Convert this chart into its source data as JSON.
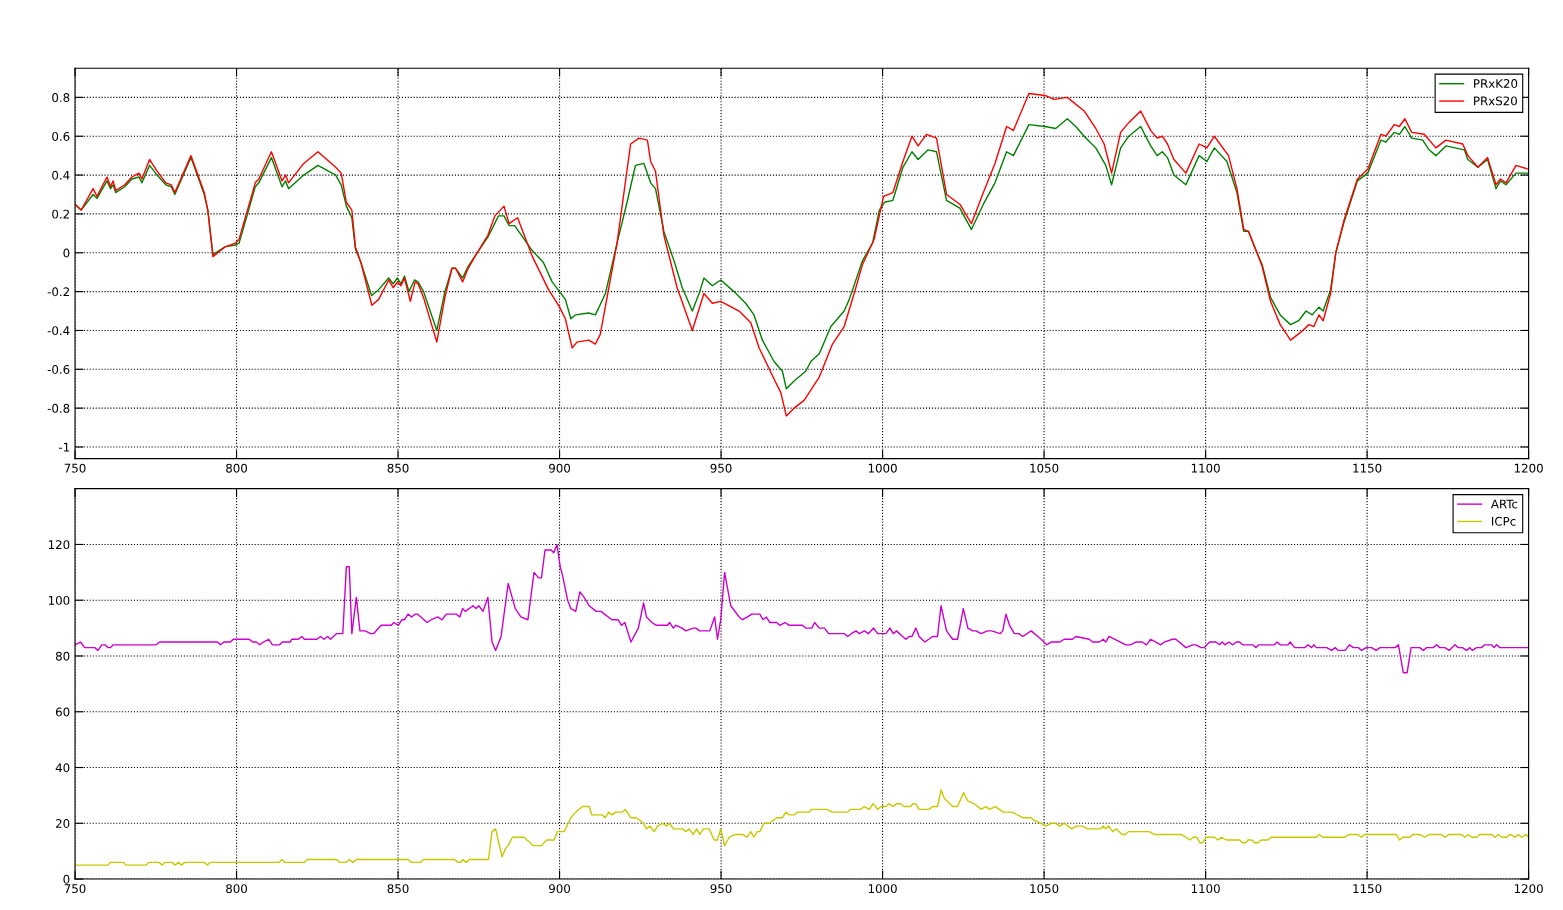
{
  "chart_data": [
    {
      "type": "line",
      "xlim": [
        750,
        1200
      ],
      "xticks": [
        750,
        800,
        850,
        900,
        950,
        1000,
        1050,
        1100,
        1150,
        1200
      ],
      "ylim": [
        -1.06,
        0.95
      ],
      "yticks": [
        -1,
        -0.8,
        -0.6,
        -0.4,
        -0.2,
        0,
        0.2,
        0.4,
        0.6,
        0.8
      ],
      "grid": true,
      "legend": "top right",
      "line_style": "solid",
      "marker": "none",
      "series": [
        {
          "name": "PRxK20",
          "color": "#008000",
          "x": [
            750,
            751.9,
            755.6,
            756.8,
            759.9,
            761,
            761.8,
            762.6,
            765.4,
            767.6,
            769.8,
            770.7,
            773.1,
            775.4,
            778.1,
            779.8,
            780.9,
            785.9,
            790,
            791.1,
            792.7,
            796.4,
            799.7,
            800.8,
            805.8,
            806.9,
            810.8,
            814.1,
            815.2,
            816.1,
            820.8,
            825.2,
            830.7,
            832.4,
            834,
            835.7,
            836.8,
            838.5,
            841.8,
            844,
            847.1,
            848.5,
            849.8,
            850.9,
            852,
            853.4,
            855.1,
            856.2,
            857.9,
            862,
            864.5,
            866.7,
            867.8,
            870,
            871.7,
            874.5,
            877.8,
            881.1,
            882.8,
            884.4,
            886.1,
            891.6,
            895,
            897.7,
            900,
            901.8,
            903.5,
            904.9,
            909,
            911.1,
            914.2,
            917.8,
            920.9,
            923.5,
            926.1,
            928.2,
            929.7,
            932.3,
            935.4,
            938,
            941.1,
            943.2,
            944.7,
            947.3,
            949.9,
            954,
            957.6,
            960.2,
            962.8,
            966.4,
            969,
            970.2,
            972.6,
            976.2,
            977.8,
            980.4,
            984,
            988.1,
            989.7,
            993.8,
            996.9,
            999,
            1000.6,
            1003.2,
            1006.3,
            1009.1,
            1011,
            1014.1,
            1016.7,
            1019.8,
            1023.9,
            1027.5,
            1031.2,
            1034.8,
            1038.4,
            1040.5,
            1045.3,
            1050.3,
            1053.6,
            1057.2,
            1059.8,
            1062.4,
            1066,
            1069.1,
            1070.9,
            1073.7,
            1076.2,
            1079.9,
            1083,
            1085,
            1086.6,
            1088.2,
            1090.2,
            1093.9,
            1098,
            1100.4,
            1102.7,
            1106.6,
            1109.7,
            1111.8,
            1113.3,
            1115.9,
            1117.5,
            1120.1,
            1123.1,
            1126.3,
            1128.8,
            1131.1,
            1133,
            1135.1,
            1136.4,
            1138.7,
            1140.3,
            1142.9,
            1147,
            1150.2,
            1154.3,
            1155.8,
            1158.4,
            1160,
            1161.7,
            1163.8,
            1167.2,
            1169.2,
            1171.3,
            1174.4,
            1180.1,
            1181.2,
            1184.3,
            1187.3,
            1189.9,
            1191.3,
            1193,
            1196.1,
            1200
          ],
          "values": [
            0.25,
            0.22,
            0.3,
            0.28,
            0.37,
            0.33,
            0.35,
            0.31,
            0.34,
            0.38,
            0.39,
            0.36,
            0.45,
            0.4,
            0.35,
            0.34,
            0.3,
            0.49,
            0.3,
            0.22,
            -0.01,
            0.03,
            0.04,
            0.05,
            0.34,
            0.36,
            0.49,
            0.34,
            0.37,
            0.33,
            0.4,
            0.45,
            0.4,
            0.35,
            0.24,
            0.18,
            0.02,
            -0.05,
            -0.22,
            -0.19,
            -0.13,
            -0.16,
            -0.13,
            -0.16,
            -0.12,
            -0.2,
            -0.14,
            -0.15,
            -0.2,
            -0.4,
            -0.2,
            -0.08,
            -0.08,
            -0.13,
            -0.07,
            0.0,
            0.08,
            0.19,
            0.19,
            0.14,
            0.14,
            0.01,
            -0.05,
            -0.15,
            -0.2,
            -0.24,
            -0.34,
            -0.32,
            -0.31,
            -0.32,
            -0.21,
            0.05,
            0.26,
            0.45,
            0.46,
            0.36,
            0.33,
            0.11,
            -0.04,
            -0.18,
            -0.3,
            -0.21,
            -0.13,
            -0.17,
            -0.14,
            -0.2,
            -0.26,
            -0.32,
            -0.45,
            -0.56,
            -0.61,
            -0.7,
            -0.66,
            -0.61,
            -0.56,
            -0.52,
            -0.38,
            -0.3,
            -0.24,
            -0.04,
            0.05,
            0.22,
            0.26,
            0.27,
            0.44,
            0.52,
            0.48,
            0.53,
            0.52,
            0.27,
            0.23,
            0.12,
            0.25,
            0.36,
            0.52,
            0.5,
            0.66,
            0.65,
            0.64,
            0.69,
            0.65,
            0.6,
            0.54,
            0.45,
            0.35,
            0.54,
            0.6,
            0.65,
            0.55,
            0.5,
            0.52,
            0.49,
            0.4,
            0.35,
            0.5,
            0.47,
            0.54,
            0.47,
            0.31,
            0.11,
            0.11,
            0.0,
            -0.06,
            -0.23,
            -0.32,
            -0.37,
            -0.35,
            -0.3,
            -0.32,
            -0.28,
            -0.3,
            -0.19,
            0.0,
            0.16,
            0.37,
            0.41,
            0.58,
            0.57,
            0.62,
            0.61,
            0.65,
            0.59,
            0.58,
            0.53,
            0.5,
            0.55,
            0.53,
            0.48,
            0.44,
            0.48,
            0.33,
            0.37,
            0.35,
            0.41,
            0.41
          ]
        },
        {
          "name": "PRxS20",
          "color": "#ff0000",
          "x": [
            750,
            751.9,
            755.6,
            756.8,
            759.9,
            761,
            761.8,
            762.6,
            765.4,
            767.6,
            769.8,
            770.7,
            773.1,
            775.4,
            778.1,
            779.8,
            780.9,
            785.9,
            790,
            791.1,
            792.7,
            796.4,
            799.7,
            800.8,
            805.8,
            806.9,
            810.8,
            814.1,
            815.2,
            816.1,
            820.8,
            825.2,
            830.7,
            832.4,
            834,
            835.7,
            836.8,
            838.5,
            841.9,
            844,
            847.1,
            848.5,
            849.8,
            850.9,
            852,
            853.8,
            855.3,
            856.2,
            857.9,
            862,
            864.5,
            866.7,
            867.8,
            870,
            871.7,
            874.5,
            877.8,
            880,
            882.8,
            884.4,
            887,
            891.6,
            896.6,
            900,
            901.8,
            903.9,
            905.4,
            909,
            911.1,
            912.6,
            917.8,
            922,
            924.6,
            927.2,
            928.2,
            929.7,
            932.3,
            936.4,
            941.1,
            944.7,
            947.3,
            949.9,
            955.6,
            959.2,
            961.8,
            966.4,
            968.5,
            970.2,
            972.6,
            975.7,
            980.4,
            984.5,
            988.1,
            991.2,
            993.8,
            997.4,
            1000.3,
            1003.2,
            1006.3,
            1009.1,
            1011,
            1013.6,
            1016.7,
            1019.8,
            1023.9,
            1027.5,
            1031.2,
            1034.8,
            1038.4,
            1040.5,
            1045.3,
            1050.3,
            1053.1,
            1057.2,
            1062.4,
            1066,
            1068.6,
            1070.9,
            1073.7,
            1076.2,
            1079.9,
            1083,
            1085,
            1086.6,
            1088.2,
            1090.2,
            1093.9,
            1098,
            1100.4,
            1102.7,
            1107.1,
            1109.7,
            1111.8,
            1113.3,
            1115.9,
            1117.5,
            1120.1,
            1123.1,
            1126.3,
            1129.4,
            1132,
            1133.5,
            1135.1,
            1136.4,
            1138.7,
            1140.3,
            1142.9,
            1147,
            1150.2,
            1154.3,
            1155.8,
            1158.4,
            1160,
            1161.7,
            1163.8,
            1167.7,
            1171.3,
            1174.4,
            1179.6,
            1181.2,
            1184.3,
            1187.3,
            1189.9,
            1191.3,
            1193,
            1196.1,
            1200
          ],
          "values": [
            0.25,
            0.22,
            0.33,
            0.29,
            0.39,
            0.34,
            0.37,
            0.32,
            0.35,
            0.39,
            0.41,
            0.38,
            0.48,
            0.42,
            0.36,
            0.35,
            0.31,
            0.5,
            0.31,
            0.22,
            -0.02,
            0.03,
            0.05,
            0.07,
            0.36,
            0.38,
            0.52,
            0.37,
            0.4,
            0.36,
            0.46,
            0.52,
            0.44,
            0.41,
            0.26,
            0.22,
            0.03,
            -0.05,
            -0.27,
            -0.24,
            -0.14,
            -0.18,
            -0.15,
            -0.17,
            -0.13,
            -0.25,
            -0.15,
            -0.16,
            -0.23,
            -0.46,
            -0.23,
            -0.08,
            -0.08,
            -0.15,
            -0.08,
            0.0,
            0.09,
            0.19,
            0.24,
            0.15,
            0.18,
            -0.02,
            -0.19,
            -0.28,
            -0.34,
            -0.49,
            -0.46,
            -0.45,
            -0.47,
            -0.42,
            0.05,
            0.56,
            0.59,
            0.58,
            0.47,
            0.42,
            0.09,
            -0.18,
            -0.4,
            -0.21,
            -0.26,
            -0.25,
            -0.3,
            -0.36,
            -0.49,
            -0.65,
            -0.72,
            -0.84,
            -0.8,
            -0.76,
            -0.64,
            -0.47,
            -0.38,
            -0.21,
            -0.06,
            0.07,
            0.29,
            0.31,
            0.47,
            0.6,
            0.55,
            0.61,
            0.59,
            0.3,
            0.25,
            0.15,
            0.31,
            0.46,
            0.65,
            0.63,
            0.82,
            0.81,
            0.79,
            0.8,
            0.73,
            0.64,
            0.56,
            0.41,
            0.62,
            0.67,
            0.73,
            0.63,
            0.59,
            0.6,
            0.56,
            0.48,
            0.41,
            0.56,
            0.54,
            0.6,
            0.5,
            0.33,
            0.12,
            0.11,
            0.0,
            -0.07,
            -0.25,
            -0.37,
            -0.45,
            -0.41,
            -0.37,
            -0.38,
            -0.32,
            -0.35,
            -0.21,
            0.0,
            0.17,
            0.38,
            0.43,
            0.61,
            0.6,
            0.66,
            0.65,
            0.69,
            0.62,
            0.61,
            0.54,
            0.58,
            0.56,
            0.5,
            0.44,
            0.49,
            0.35,
            0.38,
            0.36,
            0.45,
            0.43
          ]
        }
      ]
    },
    {
      "type": "line",
      "xlim": [
        750,
        1200
      ],
      "xticks": [
        750,
        800,
        850,
        900,
        950,
        1000,
        1050,
        1100,
        1150,
        1200
      ],
      "ylim": [
        0,
        140
      ],
      "yticks": [
        0,
        20,
        40,
        60,
        80,
        100,
        120
      ],
      "grid": true,
      "legend": "top right",
      "line_style": "solid",
      "marker": "none",
      "series": [
        {
          "name": "ARTc",
          "color": "#cc00cc",
          "x": [
            750,
            751.7,
            753,
            756.1,
            757.1,
            758.3,
            759.3,
            760.2,
            761,
            761.8,
            775.1,
            776.2,
            794.1,
            795,
            796.1,
            798.1,
            799,
            803.9,
            805,
            806.1,
            807.2,
            808.3,
            810,
            811.1,
            813.3,
            814.2,
            816.6,
            817.1,
            819.1,
            820.2,
            821,
            824.9,
            826,
            827.1,
            828.2,
            829.1,
            830.9,
            832.9,
            834,
            834.9,
            835.7,
            837.1,
            838.2,
            839.9,
            841.5,
            842.4,
            844.8,
            847.9,
            848.7,
            850.1,
            851.2,
            852,
            853.1,
            854.2,
            855.3,
            856.1,
            859,
            860.3,
            862.3,
            863.6,
            864.9,
            868,
            869.1,
            870,
            870.8,
            873.2,
            874.1,
            875,
            876.3,
            877.8,
            879.1,
            880.2,
            881.9,
            884.1,
            886.3,
            888,
            890.2,
            892.1,
            893.5,
            894.4,
            895.5,
            897.4,
            898.2,
            899.2,
            900.2,
            900.9,
            902.5,
            903.5,
            905,
            906.3,
            907.6,
            909.2,
            911.3,
            912.8,
            916.2,
            918.1,
            919.2,
            920.2,
            922.1,
            924.4,
            926,
            926.9,
            928.6,
            930,
            933.4,
            934.1,
            935.2,
            936,
            937.9,
            939.1,
            941.4,
            942.2,
            943.4,
            946.5,
            948,
            948.9,
            949.9,
            951.1,
            953,
            955.6,
            956.6,
            958.2,
            959.5,
            962,
            963,
            964,
            965.1,
            967.2,
            968.2,
            969.8,
            971.1,
            975.2,
            976.2,
            978.1,
            979,
            980.4,
            982,
            983.3,
            984.6,
            988.2,
            989.2,
            990.3,
            991.8,
            992.8,
            994.4,
            995.6,
            997.2,
            998.5,
            1001,
            1002.3,
            1003.3,
            1004.3,
            1006.2,
            1007.2,
            1008.2,
            1009.1,
            1010.3,
            1011.3,
            1013.1,
            1015.5,
            1017,
            1018.1,
            1019.8,
            1021.7,
            1023.2,
            1025,
            1026.4,
            1027.9,
            1028.9,
            1030.5,
            1032.5,
            1033.8,
            1036.4,
            1037.2,
            1038.2,
            1039.3,
            1040.8,
            1042.2,
            1043.4,
            1046,
            1049.1,
            1050.8,
            1052.2,
            1053.5,
            1054.9,
            1056.2,
            1058.8,
            1059.8,
            1064,
            1065,
            1067.1,
            1068.3,
            1069.1,
            1070.1,
            1075.3,
            1076.8,
            1078.4,
            1080.4,
            1081.7,
            1083,
            1084.6,
            1086.1,
            1087.2,
            1089.7,
            1090.8,
            1093.9,
            1096,
            1097,
            1098.6,
            1099.6,
            1101.2,
            1103.2,
            1104.3,
            1105.1,
            1106,
            1107.2,
            1108.4,
            1109.5,
            1110.5,
            1111.5,
            1114.6,
            1115.5,
            1116.5,
            1121.3,
            1122.1,
            1123.1,
            1125.5,
            1126.2,
            1127.6,
            1130.7,
            1131.7,
            1132.8,
            1133.5,
            1134.3,
            1137.5,
            1139,
            1140.1,
            1141.1,
            1143.2,
            1144.5,
            1145.7,
            1147.3,
            1148.3,
            1149.7,
            1151.4,
            1152.8,
            1154,
            1158.7,
            1159.7,
            1161.2,
            1162.4,
            1163.6,
            1166.3,
            1167.4,
            1168.4,
            1170.5,
            1171.5,
            1172.5,
            1174.1,
            1175.4,
            1177.2,
            1178.2,
            1179.5,
            1180.8,
            1181.8,
            1182.6,
            1183.9,
            1185.4,
            1186.4,
            1188.5,
            1189.3,
            1190.1,
            1191.1,
            1200
          ],
          "values": [
            84,
            85,
            83,
            83,
            82,
            84,
            84,
            83,
            83,
            84,
            84,
            85,
            85,
            84,
            85,
            85,
            86,
            86,
            85,
            85,
            84,
            85,
            86,
            84,
            84,
            85,
            85,
            86,
            86,
            87,
            86,
            86,
            87,
            86,
            87,
            86,
            88,
            88,
            112,
            112,
            88,
            101,
            89,
            89,
            88,
            88,
            91,
            91,
            92,
            91,
            93,
            93,
            95,
            94,
            95,
            95,
            92,
            93,
            94,
            93,
            95,
            95,
            94,
            97,
            96,
            98,
            97,
            98,
            96,
            101,
            85,
            82,
            87,
            106,
            97,
            94,
            93,
            110,
            108,
            108,
            118,
            118,
            117,
            120,
            112,
            109,
            100,
            97,
            96,
            103,
            101,
            98,
            96,
            96,
            93,
            93,
            91,
            92,
            85,
            90,
            99,
            94,
            92,
            91,
            91,
            92,
            90,
            91,
            90,
            89,
            90,
            90,
            89,
            89,
            94,
            86,
            93,
            110,
            98,
            94,
            93,
            94,
            95,
            95,
            93,
            94,
            92,
            92,
            91,
            92,
            91,
            91,
            90,
            90,
            92,
            90,
            90,
            88,
            88,
            88,
            87,
            88,
            89,
            88,
            89,
            88,
            90,
            88,
            88,
            90,
            88,
            89,
            87,
            86,
            87,
            87,
            90,
            87,
            85,
            87,
            87,
            98,
            89,
            86,
            86,
            97,
            90,
            89,
            89,
            88,
            89,
            89,
            88,
            89,
            95,
            91,
            88,
            88,
            87,
            89,
            86,
            84,
            85,
            85,
            85,
            86,
            86,
            87,
            86,
            85,
            85,
            86,
            85,
            87,
            84,
            84,
            85,
            85,
            84,
            86,
            85,
            84,
            85,
            86,
            86,
            83,
            84,
            84,
            83,
            83,
            85,
            85,
            84,
            85,
            84,
            85,
            84,
            85,
            85,
            84,
            84,
            83,
            84,
            84,
            85,
            84,
            84,
            85,
            83,
            83,
            84,
            83,
            84,
            83,
            83,
            82,
            83,
            82,
            82,
            84,
            83,
            83,
            82,
            83,
            83,
            82,
            83,
            83,
            84,
            74,
            74,
            83,
            83,
            82,
            83,
            83,
            84,
            83,
            83,
            82,
            84,
            83,
            83,
            82,
            83,
            82,
            83,
            83,
            84,
            84,
            83,
            84,
            83,
            83
          ]
        },
        {
          "name": "ICPc",
          "color": "#c8c800",
          "x": [
            750,
            760.2,
            761,
            765,
            765.8,
            772,
            772.9,
            776,
            777,
            777.9,
            780,
            781,
            782,
            782.9,
            784,
            790,
            791,
            791.9,
            813.2,
            814.1,
            814.9,
            821,
            821.9,
            830.9,
            832,
            834,
            834.9,
            836,
            837.1,
            853.1,
            854.2,
            857,
            857.9,
            867.5,
            868.6,
            869.4,
            870.2,
            871,
            872.2,
            878,
            879.1,
            880.2,
            882.2,
            883.3,
            884.1,
            885.4,
            889,
            891.8,
            894.4,
            896,
            898.3,
            899.3,
            900,
            901.4,
            903.5,
            905,
            907.1,
            909.2,
            910,
            913.3,
            914.1,
            915.2,
            916.2,
            917.4,
            919.5,
            920.3,
            922.1,
            923.6,
            925,
            925.9,
            926.9,
            928,
            929.3,
            930.3,
            931.9,
            933.1,
            934.1,
            935.2,
            938,
            939.1,
            940.1,
            941.4,
            942.4,
            943.4,
            944.5,
            946.3,
            947.9,
            948.9,
            949.9,
            951.1,
            952.5,
            954.5,
            956.6,
            958.1,
            959.2,
            960.2,
            961.2,
            962,
            963.3,
            964.9,
            967.2,
            969,
            970.1,
            971.1,
            972.6,
            973.6,
            977.2,
            978.1,
            982.9,
            984.3,
            989.2,
            990,
            993.3,
            994.3,
            995.9,
            997.1,
            998.5,
            999.5,
            1001,
            1002,
            1003.3,
            1004.3,
            1005.6,
            1006.7,
            1008.7,
            1009.4,
            1010.3,
            1011.3,
            1014.4,
            1015.5,
            1017,
            1018.1,
            1019.1,
            1021.7,
            1023.2,
            1025.1,
            1026.4,
            1028.4,
            1030.5,
            1032,
            1033.1,
            1034.9,
            1037.4,
            1040.1,
            1043.4,
            1046,
            1047,
            1049.1,
            1050.6,
            1052.2,
            1053.5,
            1054.8,
            1056.2,
            1058.6,
            1060,
            1061.9,
            1063.4,
            1067.5,
            1068.3,
            1069.1,
            1070,
            1071.2,
            1072.4,
            1074.1,
            1075.1,
            1076.1,
            1082.5,
            1084.1,
            1092.3,
            1093.9,
            1095.1,
            1096.2,
            1097.2,
            1098.3,
            1099.1,
            1100.2,
            1102.8,
            1103.8,
            1104.9,
            1106.4,
            1110.5,
            1111.4,
            1112.4,
            1113.1,
            1114.3,
            1115.2,
            1116.2,
            1117.2,
            1119.3,
            1120.3,
            1134.3,
            1135.1,
            1136.3,
            1143,
            1144.6,
            1147.2,
            1148.2,
            1149.2,
            1159,
            1160.1,
            1161.1,
            1163.2,
            1164.2,
            1166.3,
            1167.8,
            1169.4,
            1173,
            1174.1,
            1175.4,
            1179.2,
            1180.3,
            1181.3,
            1182.4,
            1183.9,
            1184.9,
            1188.5,
            1189.6,
            1190.6,
            1191.7,
            1193.2,
            1194.2,
            1195.8,
            1196.8,
            1197.8,
            1199.2,
            1200
          ],
          "values": [
            5,
            5,
            6,
            6,
            5,
            5,
            6,
            6,
            5,
            6,
            6,
            5,
            6,
            5,
            6,
            6,
            5,
            6,
            6,
            7,
            6,
            6,
            7,
            7,
            6,
            6,
            7,
            6,
            7,
            7,
            6,
            6,
            7,
            7,
            6,
            6,
            7,
            6,
            7,
            7,
            17,
            18,
            8,
            11,
            12,
            15,
            15,
            12,
            12,
            14,
            14,
            17,
            17,
            17,
            22,
            24,
            26,
            26,
            23,
            23,
            22,
            24,
            23,
            24,
            24,
            25,
            22,
            22,
            21,
            20,
            18,
            19,
            17,
            19,
            20,
            19,
            20,
            18,
            18,
            17,
            18,
            16,
            18,
            16,
            18,
            18,
            14,
            14,
            18,
            12,
            15,
            16,
            16,
            15,
            17,
            15,
            17,
            17,
            20,
            20,
            22,
            22,
            24,
            23,
            23,
            24,
            24,
            25,
            25,
            24,
            24,
            25,
            25,
            26,
            25,
            27,
            25,
            26,
            26,
            27,
            26,
            27,
            27,
            26,
            26,
            27,
            27,
            25,
            25,
            26,
            26,
            32,
            29,
            26,
            26,
            31,
            28,
            27,
            25,
            26,
            25,
            26,
            24,
            24,
            22,
            22,
            21,
            20,
            19,
            20,
            20,
            19,
            20,
            18,
            19,
            19,
            18,
            18,
            19,
            18,
            19,
            17,
            18,
            16,
            16,
            17,
            17,
            16,
            16,
            15,
            14,
            15,
            15,
            13,
            13,
            15,
            15,
            14,
            15,
            14,
            14,
            13,
            13,
            14,
            14,
            13,
            13,
            14,
            14,
            15,
            15,
            16,
            15,
            15,
            16,
            16,
            15,
            16,
            16,
            14,
            15,
            15,
            16,
            16,
            15,
            16,
            16,
            15,
            16,
            16,
            15,
            16,
            15,
            15,
            16,
            16,
            15,
            16,
            15,
            15,
            16,
            15,
            16,
            15,
            16,
            15
          ]
        }
      ]
    }
  ]
}
